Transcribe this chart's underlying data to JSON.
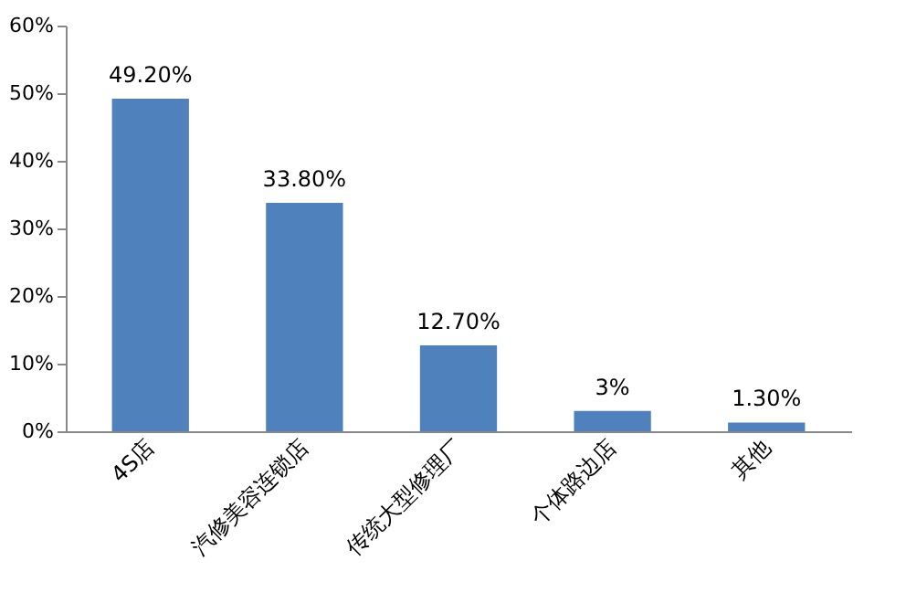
{
  "chart_data": {
    "type": "bar",
    "categories": [
      "4S店",
      "汽修美容连锁店",
      "传统大型修理厂",
      "个体路边店",
      "其他"
    ],
    "values": [
      49.2,
      33.8,
      12.7,
      3,
      1.3
    ],
    "value_labels": [
      "49.20%",
      "33.80%",
      "12.70%",
      "3%",
      "1.30%"
    ],
    "color": "#4f81bd",
    "ylim": [
      0,
      60
    ],
    "yticks": [
      {
        "value": 0,
        "label": "0%"
      },
      {
        "value": 10,
        "label": "10%"
      },
      {
        "value": 20,
        "label": "20%"
      },
      {
        "value": 30,
        "label": "30%"
      },
      {
        "value": 40,
        "label": "40%"
      },
      {
        "value": 50,
        "label": "50%"
      },
      {
        "value": 60,
        "label": "60%"
      }
    ],
    "grid": false
  }
}
